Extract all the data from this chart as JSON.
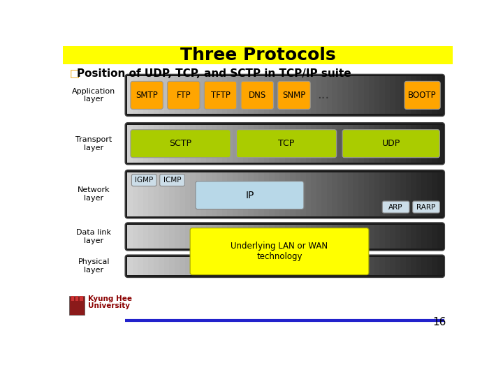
{
  "title": "Three Protocols",
  "subtitle": "Position of UDP, TCP, and SCTP in TCP/IP suite",
  "title_bg": "#FFFF00",
  "title_color": "#000000",
  "subtitle_color": "#000000",
  "bg_color": "#FFFFFF",
  "orange": "#FFA500",
  "green": "#AACC00",
  "yellow": "#FFFF00",
  "light_blue": "#B8D8E8",
  "app_items": [
    "SMTP",
    "FTP",
    "TFTP",
    "DNS",
    "SNMP",
    "...",
    "BOOTP"
  ],
  "transport_items": [
    "SCTP",
    "TCP",
    "UDP"
  ],
  "data_physical": "Underlying LAN or WAN\ntechnology",
  "layer_labels": [
    "Application\nlayer",
    "Transport\nlayer",
    "Network\nlayer",
    "Data link\nlayer",
    "Physical\nlayer"
  ],
  "footer_text": "Kyung Hee\nUniversity",
  "page_num": "16",
  "panel_light": "#D0D0D0",
  "panel_dark": "#1a1a1a",
  "panel_border": "#444444"
}
